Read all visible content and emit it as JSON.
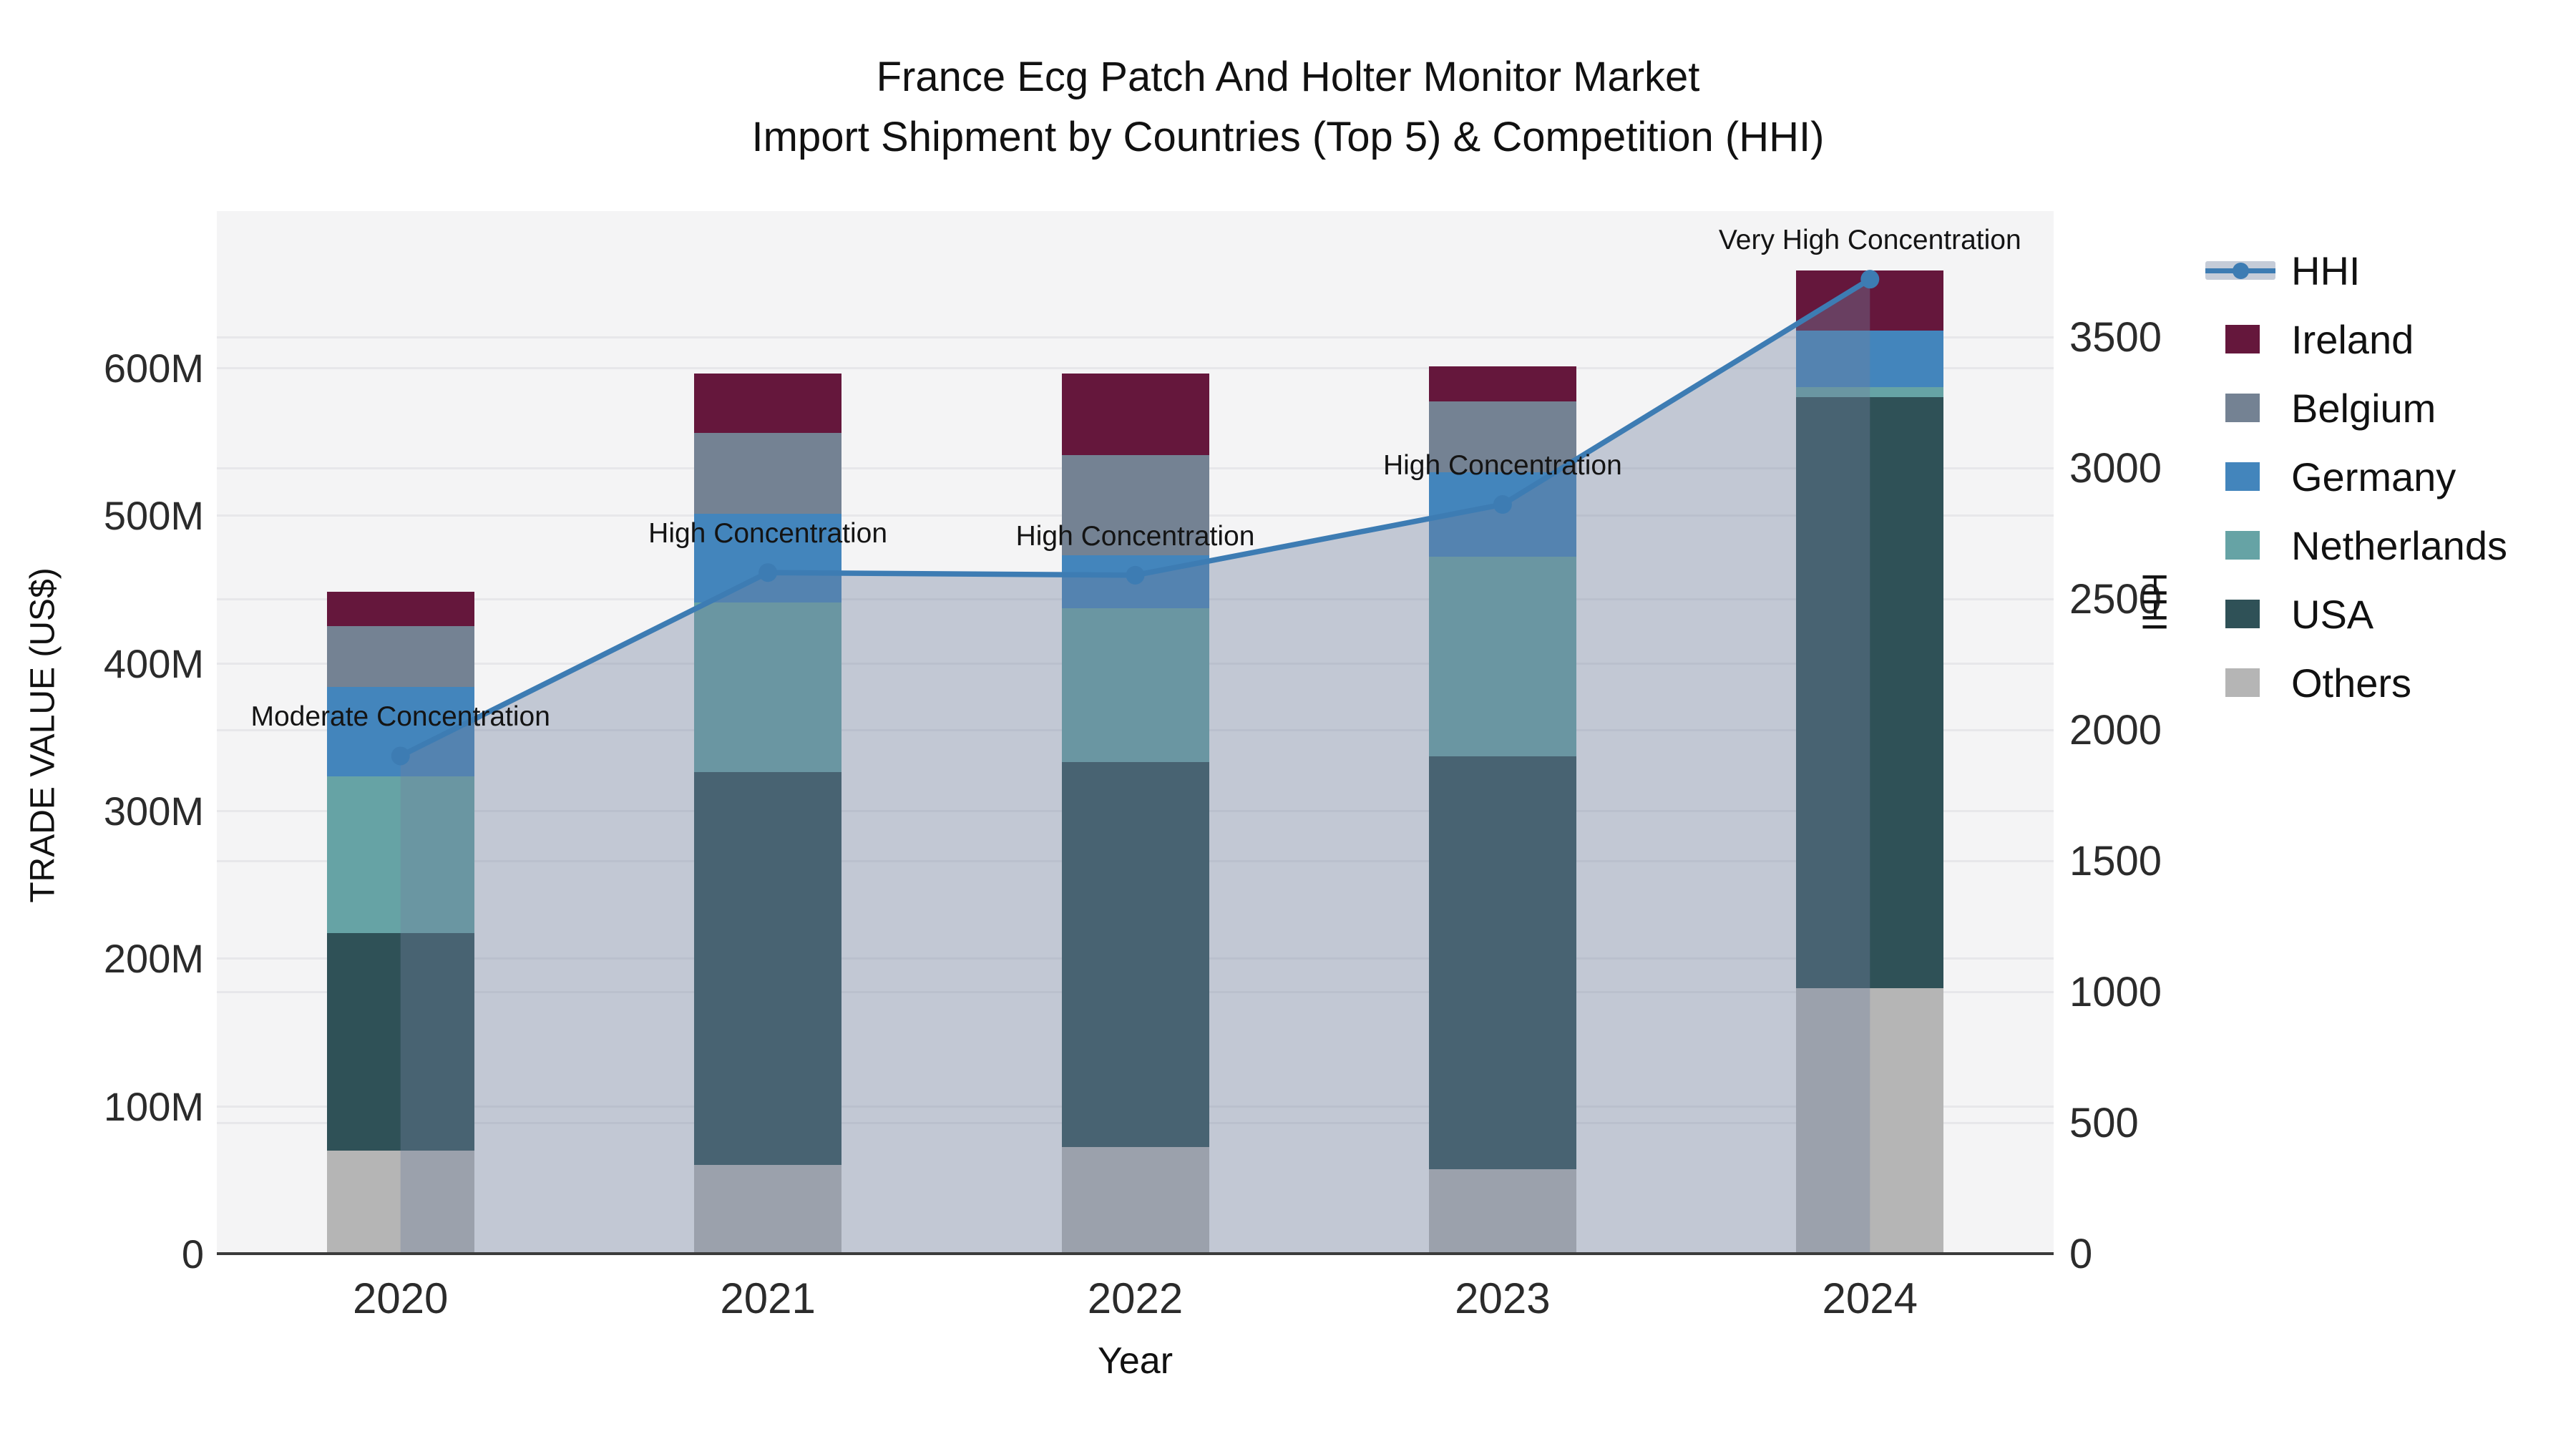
{
  "title": {
    "line1": "France Ecg Patch And Holter Monitor Market",
    "line2": "Import Shipment by Countries (Top 5) & Competition (HHI)"
  },
  "chart_data": {
    "type": "bar+line",
    "title": "France Ecg Patch And Holter Monitor Market Import Shipment by Countries (Top 5) & Competition (HHI)",
    "categories": [
      "2020",
      "2021",
      "2022",
      "2023",
      "2024"
    ],
    "stack_order_bottom_to_top": [
      "Others",
      "USA",
      "Netherlands",
      "Germany",
      "Belgium",
      "Ireland"
    ],
    "series": [
      {
        "name": "Others",
        "color": "#b5b5b5",
        "values": [
          70,
          60,
          72,
          57,
          180
        ]
      },
      {
        "name": "USA",
        "color": "#2f5157",
        "values": [
          147,
          266,
          261,
          280,
          400
        ]
      },
      {
        "name": "Netherlands",
        "color": "#66a3a5",
        "values": [
          106,
          115,
          104,
          135,
          7
        ]
      },
      {
        "name": "Germany",
        "color": "#4385bc",
        "values": [
          61,
          60,
          36,
          57,
          38
        ]
      },
      {
        "name": "Belgium",
        "color": "#748293",
        "values": [
          41,
          55,
          68,
          48,
          0
        ]
      },
      {
        "name": "Ireland",
        "color": "#65173c",
        "values": [
          23,
          40,
          55,
          24,
          41
        ]
      }
    ],
    "values_unit": "M (US$ millions)",
    "bar_totals": [
      448,
      596,
      596,
      601,
      666
    ],
    "hhi": {
      "name": "HHI",
      "line_color": "#3d7cb3",
      "area_fill": "rgba(114,130,158,0.38)",
      "values": [
        1900,
        2600,
        2590,
        2860,
        3720
      ]
    },
    "annotations": [
      "Moderate Concentration",
      "High Concentration",
      "High Concentration",
      "High Concentration",
      "Very High Concentration"
    ],
    "left_axis": {
      "title": "TRADE VALUE (US$)",
      "tick_labels": [
        "0",
        "100M",
        "200M",
        "300M",
        "400M",
        "500M",
        "600M"
      ],
      "tick_values": [
        0,
        100,
        200,
        300,
        400,
        500,
        600
      ],
      "range": [
        0,
        706
      ]
    },
    "right_axis": {
      "title": "HHI",
      "tick_labels": [
        "0",
        "500",
        "1000",
        "1500",
        "2000",
        "2500",
        "3000",
        "3500"
      ],
      "tick_values": [
        0,
        500,
        1000,
        1500,
        2000,
        2500,
        3000,
        3500
      ],
      "range": [
        0,
        3980
      ]
    },
    "x_axis": {
      "title": "Year"
    },
    "grid": true,
    "legend_position": "right"
  },
  "legend": {
    "items": [
      {
        "label": "HHI",
        "type": "line",
        "color": "#3d7cb3"
      },
      {
        "label": "Ireland",
        "type": "swatch",
        "color": "#65173c"
      },
      {
        "label": "Belgium",
        "type": "swatch",
        "color": "#748293"
      },
      {
        "label": "Germany",
        "type": "swatch",
        "color": "#4385bc"
      },
      {
        "label": "Netherlands",
        "type": "swatch",
        "color": "#66a3a5"
      },
      {
        "label": "USA",
        "type": "swatch",
        "color": "#2f5157"
      },
      {
        "label": "Others",
        "type": "swatch",
        "color": "#b5b5b5"
      }
    ]
  }
}
